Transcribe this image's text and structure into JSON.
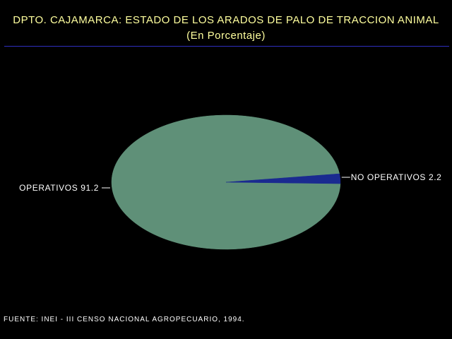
{
  "header": {
    "title": "DPTO. CAJAMARCA: ESTADO DE LOS ARADOS DE PALO DE TRACCION ANIMAL",
    "subtitle": "(En Porcentaje)"
  },
  "footer": {
    "source": "FUENTE: INEI - III CENSO NACIONAL AGROPECUARIO, 1994."
  },
  "colors": {
    "title_text": "#ffff9e",
    "rule": "#2f2fc0",
    "label_text": "#ffffff",
    "leader": "#ffffff"
  },
  "chart_data": {
    "type": "pie",
    "title": "DPTO. CAJAMARCA: ESTADO DE LOS ARADOS DE PALO DE TRACCION ANIMAL",
    "subtitle": "(En Porcentaje)",
    "slices": [
      {
        "label": "OPERATIVOS",
        "value": 91.2,
        "display": "OPERATIVOS  91.2",
        "color": "#5f9078"
      },
      {
        "label": "NO OPERATIVOS",
        "value": 2.2,
        "display": "NO OPERATIVOS  2.2",
        "color": "#1a2a90"
      }
    ]
  }
}
